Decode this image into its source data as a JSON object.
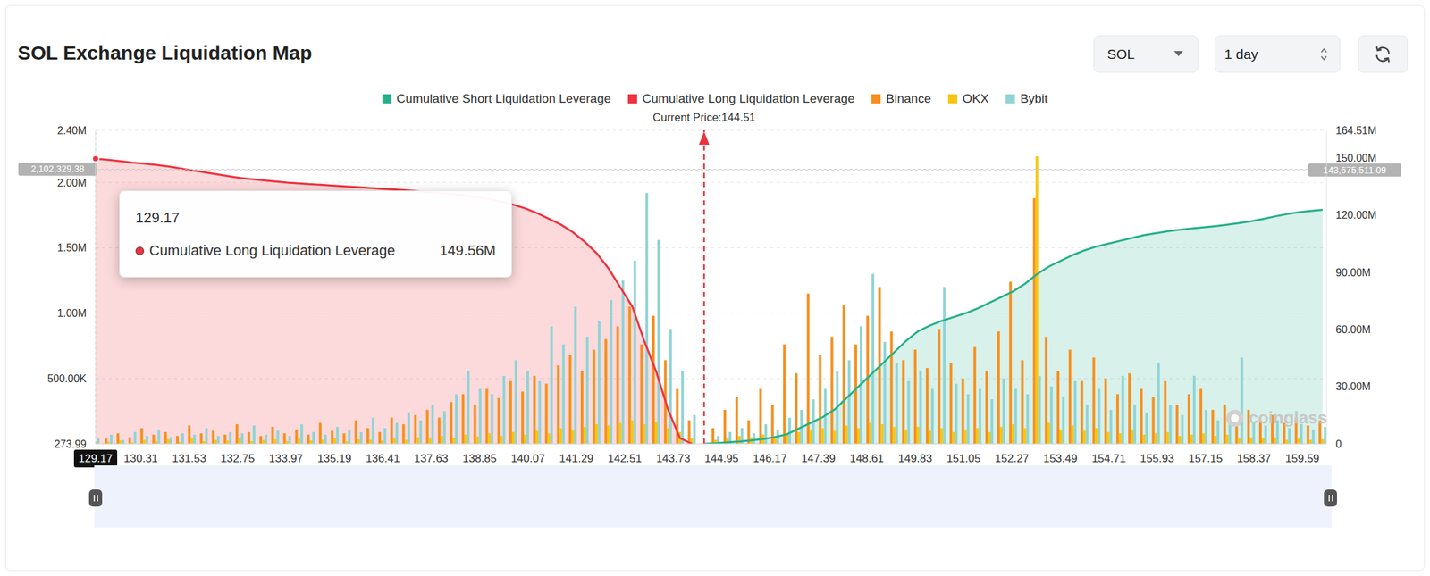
{
  "chart_data": {
    "type": "bar",
    "title": "SOL Exchange Liquidation Map",
    "controls": [
      "SOL",
      "1 day"
    ],
    "legend": "top",
    "grid": true,
    "x": [
      129.17,
      129.5,
      129.8,
      130.1,
      130.4,
      130.7,
      131,
      131.3,
      131.6,
      131.9,
      132.2,
      132.5,
      132.8,
      133.1,
      133.4,
      133.7,
      134,
      134.3,
      134.6,
      134.9,
      135.2,
      135.5,
      135.8,
      136.1,
      136.4,
      136.7,
      137,
      137.3,
      137.6,
      137.9,
      138.2,
      138.5,
      138.8,
      139.1,
      139.4,
      139.7,
      140,
      140.3,
      140.6,
      140.9,
      141.2,
      141.5,
      141.8,
      142.1,
      142.4,
      142.7,
      143,
      143.3,
      143.6,
      143.9,
      144.2,
      144.5,
      144.8,
      145.1,
      145.4,
      145.7,
      146,
      146.3,
      146.6,
      146.9,
      147.2,
      147.5,
      147.8,
      148.1,
      148.4,
      148.7,
      149,
      149.3,
      149.6,
      149.9,
      150.2,
      150.5,
      150.8,
      151.1,
      151.4,
      151.7,
      152,
      152.3,
      152.6,
      152.9,
      153.2,
      153.5,
      153.8,
      154.1,
      154.4,
      154.7,
      155,
      155.3,
      155.6,
      155.9,
      156.2,
      156.5,
      156.8,
      157.1,
      157.4,
      157.7,
      158,
      158.3,
      158.6,
      158.9,
      159.2,
      159.5,
      159.8,
      160.1
    ],
    "xlim": [
      129.17,
      160.2
    ],
    "xticks": [
      129.17,
      130.31,
      131.53,
      132.75,
      133.97,
      135.19,
      136.41,
      137.63,
      138.85,
      140.07,
      141.29,
      142.51,
      143.73,
      144.95,
      146.17,
      147.39,
      148.61,
      149.83,
      151.05,
      152.27,
      153.49,
      154.71,
      155.93,
      157.15,
      158.37,
      159.59
    ],
    "ylim": [
      273.99,
      2400000
    ],
    "yticks": [
      273.99,
      {
        "value": 500000,
        "label": "500.00K"
      },
      {
        "value": 1000000,
        "label": "1.00M"
      },
      {
        "value": 1500000,
        "label": "1.50M"
      },
      {
        "value": 2000000,
        "label": "2.00M"
      },
      {
        "value": 2400000,
        "label": "2.40M"
      }
    ],
    "y2lim": [
      0,
      164510000
    ],
    "y2ticks": [
      0,
      {
        "value": 30000000,
        "label": "30.00M"
      },
      {
        "value": 60000000,
        "label": "60.00M"
      },
      {
        "value": 90000000,
        "label": "90.00M"
      },
      {
        "value": 120000000,
        "label": "120.00M"
      },
      {
        "value": 150000000,
        "label": "150.00M"
      },
      {
        "value": 164510000,
        "label": "164.51M"
      }
    ],
    "series": [
      {
        "name": "Cumulative Short Liquidation Leverage",
        "type": "area",
        "axis": "y2",
        "color": "#26b08a",
        "values": [
          null,
          null,
          null,
          null,
          null,
          null,
          null,
          null,
          null,
          null,
          null,
          null,
          null,
          null,
          null,
          null,
          null,
          null,
          null,
          null,
          null,
          null,
          null,
          null,
          null,
          null,
          null,
          null,
          null,
          null,
          null,
          null,
          null,
          null,
          null,
          null,
          null,
          null,
          null,
          null,
          null,
          null,
          null,
          null,
          null,
          null,
          null,
          null,
          null,
          null,
          null,
          0,
          300000,
          800000,
          1200000,
          1800000,
          2500000,
          3500000,
          5000000,
          8000000,
          11000000,
          14000000,
          18000000,
          24000000,
          30000000,
          36000000,
          42000000,
          48000000,
          54000000,
          59000000,
          62000000,
          64500000,
          66500000,
          68500000,
          71000000,
          74000000,
          77000000,
          80000000,
          84000000,
          89000000,
          93000000,
          96000000,
          99000000,
          101500000,
          103500000,
          105000000,
          106500000,
          108000000,
          109500000,
          110500000,
          111500000,
          112300000,
          113000000,
          113600000,
          114200000,
          115000000,
          115800000,
          116800000,
          118000000,
          119300000,
          120500000,
          121500000,
          122200000,
          122800000
        ]
      },
      {
        "name": "Cumulative Long Liquidation Leverage",
        "type": "area",
        "axis": "y2",
        "color": "#f0333f",
        "values": [
          149560000,
          149000000,
          148300000,
          147500000,
          147000000,
          146300000,
          145500000,
          144500000,
          143500000,
          142500000,
          141500000,
          140500000,
          139500000,
          138800000,
          138200000,
          137600000,
          137000000,
          136600000,
          136200000,
          135800000,
          135400000,
          135000000,
          134600000,
          134200000,
          133800000,
          133400000,
          133000000,
          132500000,
          132000000,
          131500000,
          131000000,
          130300000,
          129500000,
          128500000,
          127000000,
          125500000,
          123500000,
          121000000,
          118000000,
          115000000,
          111000000,
          106000000,
          100000000,
          92000000,
          82000000,
          72000000,
          54000000,
          38000000,
          18000000,
          3000000,
          0,
          null,
          null,
          null,
          null,
          null,
          null,
          null,
          null,
          null,
          null,
          null,
          null,
          null,
          null,
          null,
          null,
          null,
          null,
          null,
          null,
          null,
          null,
          null,
          null,
          null,
          null,
          null,
          null,
          null,
          null,
          null,
          null,
          null,
          null,
          null,
          null,
          null,
          null,
          null,
          null,
          null,
          null,
          null,
          null,
          null,
          null,
          null,
          null,
          null,
          null,
          null,
          null,
          null
        ]
      },
      {
        "name": "Binance",
        "type": "bar",
        "color": "#f7901e",
        "values": [
          60000,
          40000,
          80000,
          50000,
          120000,
          70000,
          90000,
          60000,
          140000,
          80000,
          100000,
          70000,
          150000,
          90000,
          60000,
          130000,
          80000,
          110000,
          70000,
          160000,
          100000,
          80000,
          180000,
          120000,
          90000,
          200000,
          150000,
          220000,
          260000,
          200000,
          320000,
          380000,
          300000,
          420000,
          350000,
          480000,
          400000,
          520000,
          460000,
          600000,
          680000,
          560000,
          720000,
          800000,
          900000,
          1050000,
          760000,
          980000,
          640000,
          420000,
          180000,
          null,
          120000,
          260000,
          360000,
          180000,
          420000,
          300000,
          760000,
          540000,
          1150000,
          680000,
          820000,
          1060000,
          760000,
          980000,
          1200000,
          860000,
          640000,
          720000,
          580000,
          880000,
          620000,
          500000,
          740000,
          560000,
          860000,
          1240000,
          640000,
          1880000,
          820000,
          560000,
          720000,
          480000,
          660000,
          500000,
          380000,
          540000,
          420000,
          360000,
          480000,
          300000,
          380000,
          420000,
          260000,
          300000,
          220000,
          260000,
          180000,
          220000,
          160000,
          200000,
          140000,
          180000
        ]
      },
      {
        "name": "OKX",
        "type": "bar",
        "color": "#f8c612",
        "values": [
          20000,
          15000,
          25000,
          10000,
          30000,
          20000,
          35000,
          15000,
          40000,
          20000,
          30000,
          25000,
          45000,
          20000,
          30000,
          35000,
          20000,
          40000,
          25000,
          30000,
          45000,
          20000,
          35000,
          30000,
          25000,
          40000,
          30000,
          50000,
          40000,
          60000,
          45000,
          70000,
          55000,
          80000,
          60000,
          90000,
          70000,
          100000,
          80000,
          120000,
          110000,
          130000,
          150000,
          140000,
          160000,
          180000,
          150000,
          170000,
          120000,
          90000,
          40000,
          null,
          30000,
          40000,
          60000,
          50000,
          70000,
          60000,
          80000,
          90000,
          110000,
          120000,
          100000,
          140000,
          120000,
          160000,
          150000,
          130000,
          110000,
          130000,
          100000,
          120000,
          90000,
          110000,
          120000,
          90000,
          130000,
          150000,
          120000,
          2200000,
          160000,
          110000,
          140000,
          100000,
          120000,
          90000,
          80000,
          110000,
          70000,
          80000,
          90000,
          60000,
          70000,
          80000,
          60000,
          70000,
          40000,
          50000,
          40000,
          50000,
          30000,
          40000,
          30000,
          35000
        ]
      },
      {
        "name": "Bybit",
        "type": "bar",
        "color": "#8fd4d6",
        "values": [
          40000,
          70000,
          30000,
          90000,
          60000,
          110000,
          50000,
          80000,
          70000,
          120000,
          60000,
          90000,
          80000,
          140000,
          70000,
          100000,
          60000,
          150000,
          90000,
          70000,
          130000,
          110000,
          90000,
          200000,
          120000,
          160000,
          240000,
          180000,
          300000,
          250000,
          380000,
          560000,
          420000,
          380000,
          520000,
          640000,
          560000,
          480000,
          900000,
          760000,
          1050000,
          820000,
          940000,
          1100000,
          1250000,
          1400000,
          1920000,
          1560000,
          880000,
          560000,
          220000,
          null,
          60000,
          90000,
          120000,
          80000,
          150000,
          110000,
          200000,
          260000,
          340000,
          420000,
          560000,
          640000,
          900000,
          1300000,
          780000,
          620000,
          480000,
          560000,
          420000,
          1200000,
          460000,
          380000,
          420000,
          340000,
          500000,
          420000,
          380000,
          520000,
          440000,
          360000,
          480000,
          300000,
          420000,
          260000,
          520000,
          300000,
          240000,
          620000,
          300000,
          220000,
          520000,
          260000,
          180000,
          200000,
          660000,
          160000,
          140000,
          180000,
          120000,
          150000,
          110000,
          130000
        ]
      }
    ],
    "current_price": {
      "value": 144.51,
      "label": "Current Price:144.51"
    },
    "crosshair": {
      "x": 129.17,
      "y": {
        "value": 2102329.38,
        "label": "2,102,329.38"
      },
      "y2": {
        "value": 143675511.09,
        "label": "143,675,511.09"
      }
    },
    "tooltip": {
      "x": 129.17,
      "series": "Cumulative Long Liquidation Leverage",
      "value": {
        "value": 149560000,
        "label": "149.56M"
      }
    },
    "watermark": "coinglass"
  }
}
